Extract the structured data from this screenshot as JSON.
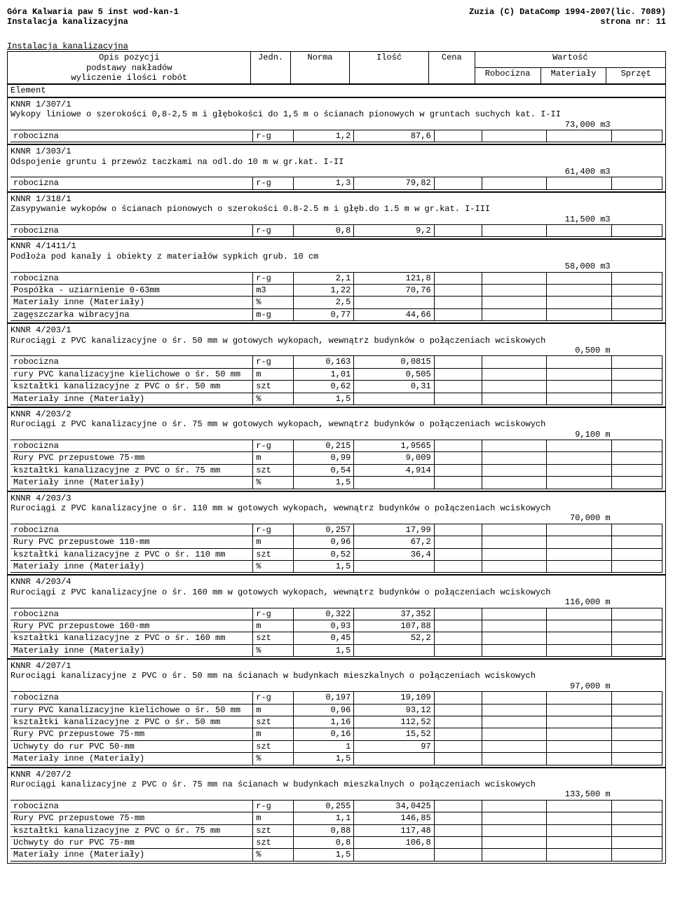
{
  "header": {
    "left_line1": "Góra Kalwaria paw 5 inst wod-kan-1",
    "left_line2": "Instalacja kanalizacyjna",
    "right_line1": "Zuzia (C) DataComp 1994-2007(lic. 7089)",
    "right_line2": "strona nr:   11"
  },
  "section_title": "Instalacja kanalizacyjna",
  "columns": {
    "desc_l1": "Opis pozycji",
    "desc_l2": "podstawy nakładów",
    "desc_l3": "wyliczenie ilości robót",
    "unit": "Jedn.",
    "norma": "Norma",
    "ilosc": "Ilość",
    "cena": "Cena",
    "wartosc": "Wartość",
    "robocizna": "Robocizna",
    "materialy": "Materiały",
    "sprzet": "Sprzęt"
  },
  "element_label": "Element",
  "blocks": [
    {
      "code": "KNNR 1/307/1",
      "title": "Wykopy liniowe o szerokości 0,8-2,5 m i głębokości do 1,5 m o ścianach pionowych w gruntach suchych kat. I-II",
      "qty": "73,000 m3",
      "rows": [
        {
          "d": "robocizna",
          "u": "r-g",
          "n": "1,2",
          "i": "87,6"
        }
      ]
    },
    {
      "code": "KNNR 1/303/1",
      "title": "Odspojenie gruntu i przewóz taczkami na odl.do 10 m w gr.kat. I-II",
      "qty": "61,400 m3",
      "rows": [
        {
          "d": "robocizna",
          "u": "r-g",
          "n": "1,3",
          "i": "79,82"
        }
      ]
    },
    {
      "code": "KNNR 1/318/1",
      "title": "Zasypywanie wykopów o ścianach pionowych o szerokości 0.8-2.5 m i głęb.do 1.5 m w gr.kat. I-III",
      "qty": "11,500 m3",
      "rows": [
        {
          "d": "robocizna",
          "u": "r-g",
          "n": "0,8",
          "i": "9,2"
        }
      ]
    },
    {
      "code": "KNNR 4/1411/1",
      "title": "Podłoża pod kanały i obiekty z materiałów sypkich grub. 10 cm",
      "qty": "58,000 m3",
      "rows": [
        {
          "d": "robocizna",
          "u": "r-g",
          "n": "2,1",
          "i": "121,8"
        },
        {
          "d": "Pospółka - uziarnienie 0-63mm",
          "u": "m3",
          "n": "1,22",
          "i": "70,76"
        },
        {
          "d": "Materiały inne (Materiały)",
          "u": "%",
          "n": "2,5",
          "i": ""
        },
        {
          "d": "zagęszczarka wibracyjna",
          "u": "m-g",
          "n": "0,77",
          "i": "44,66"
        }
      ]
    },
    {
      "code": "KNNR 4/203/1",
      "title": "Rurociągi z PVC kanalizacyjne o śr. 50 mm w gotowych wykopach, wewnątrz budynków o połączeniach wciskowych",
      "qty": "0,500 m",
      "rows": [
        {
          "d": "robocizna",
          "u": "r-g",
          "n": "0,163",
          "i": "0,0815"
        },
        {
          "d": "rury PVC kanalizacyjne kielichowe o śr. 50 mm",
          "u": "m",
          "n": "1,01",
          "i": "0,505"
        },
        {
          "d": "kształtki kanalizacyjne z PVC o śr. 50 mm",
          "u": "szt",
          "n": "0,62",
          "i": "0,31"
        },
        {
          "d": "Materiały inne (Materiały)",
          "u": "%",
          "n": "1,5",
          "i": ""
        }
      ]
    },
    {
      "code": "KNNR 4/203/2",
      "title": "Rurociągi z PVC kanalizacyjne o śr. 75 mm w gotowych wykopach, wewnątrz budynków o połączeniach wciskowych",
      "qty": "9,100 m",
      "rows": [
        {
          "d": "robocizna",
          "u": "r-g",
          "n": "0,215",
          "i": "1,9565"
        },
        {
          "d": "Rury PVC przepustowe 75·mm",
          "u": "m",
          "n": "0,99",
          "i": "9,009"
        },
        {
          "d": "kształtki kanalizacyjne z PVC o śr. 75 mm",
          "u": "szt",
          "n": "0,54",
          "i": "4,914"
        },
        {
          "d": "Materiały inne (Materiały)",
          "u": "%",
          "n": "1,5",
          "i": ""
        }
      ]
    },
    {
      "code": "KNNR 4/203/3",
      "title": "Rurociągi z PVC kanalizacyjne o śr. 110 mm w gotowych wykopach, wewnątrz budynków o połączeniach wciskowych",
      "qty": "70,000 m",
      "rows": [
        {
          "d": "robocizna",
          "u": "r-g",
          "n": "0,257",
          "i": "17,99"
        },
        {
          "d": "Rury PVC przepustowe 110·mm",
          "u": "m",
          "n": "0,96",
          "i": "67,2"
        },
        {
          "d": "kształtki kanalizacyjne z PVC o śr. 110 mm",
          "u": "szt",
          "n": "0,52",
          "i": "36,4"
        },
        {
          "d": "Materiały inne (Materiały)",
          "u": "%",
          "n": "1,5",
          "i": ""
        }
      ]
    },
    {
      "code": "KNNR 4/203/4",
      "title": "Rurociągi z PVC kanalizacyjne o śr. 160 mm w gotowych wykopach, wewnątrz budynków o połączeniach wciskowych",
      "qty": "116,000 m",
      "rows": [
        {
          "d": "robocizna",
          "u": "r-g",
          "n": "0,322",
          "i": "37,352"
        },
        {
          "d": "Rury PVC przepustowe 160·mm",
          "u": "m",
          "n": "0,93",
          "i": "107,88"
        },
        {
          "d": "kształtki kanalizacyjne z PVC o śr. 160 mm",
          "u": "szt",
          "n": "0,45",
          "i": "52,2"
        },
        {
          "d": "Materiały inne (Materiały)",
          "u": "%",
          "n": "1,5",
          "i": ""
        }
      ]
    },
    {
      "code": "KNNR 4/207/1",
      "title": "Rurociągi kanalizacyjne z PVC o śr. 50 mm na ścianach w budynkach mieszkalnych o połączeniach wciskowych",
      "qty": "97,000 m",
      "rows": [
        {
          "d": "robocizna",
          "u": "r-g",
          "n": "0,197",
          "i": "19,109"
        },
        {
          "d": "rury PVC kanalizacyjne kielichowe o śr. 50 mm",
          "u": "m",
          "n": "0,96",
          "i": "93,12"
        },
        {
          "d": "kształtki kanalizacyjne z PVC o śr. 50 mm",
          "u": "szt",
          "n": "1,16",
          "i": "112,52"
        },
        {
          "d": "Rury PVC przepustowe 75·mm",
          "u": "m",
          "n": "0,16",
          "i": "15,52"
        },
        {
          "d": "Uchwyty do rur PVC 50·mm",
          "u": "szt",
          "n": "1",
          "i": "97"
        },
        {
          "d": "Materiały inne (Materiały)",
          "u": "%",
          "n": "1,5",
          "i": ""
        }
      ]
    },
    {
      "code": "KNNR 4/207/2",
      "title": "Rurociągi kanalizacyjne z PVC o śr. 75 mm na ścianach w budynkach mieszkalnych o połączeniach wciskowych",
      "qty": "133,500 m",
      "rows": [
        {
          "d": "robocizna",
          "u": "r-g",
          "n": "0,255",
          "i": "34,0425"
        },
        {
          "d": "Rury PVC przepustowe 75·mm",
          "u": "m",
          "n": "1,1",
          "i": "146,85"
        },
        {
          "d": "kształtki kanalizacyjne z PVC o śr. 75 mm",
          "u": "szt",
          "n": "0,88",
          "i": "117,48"
        },
        {
          "d": "Uchwyty do rur PVC 75·mm",
          "u": "szt",
          "n": "0,8",
          "i": "106,8"
        },
        {
          "d": "Materiały inne (Materiały)",
          "u": "%",
          "n": "1,5",
          "i": ""
        }
      ]
    }
  ]
}
